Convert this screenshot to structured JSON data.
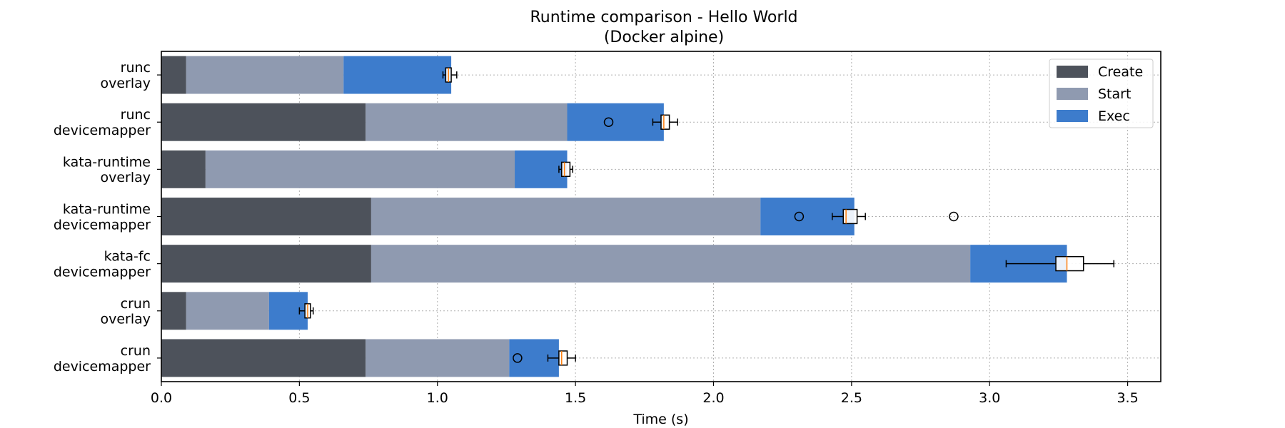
{
  "chart_data": {
    "type": "bar",
    "orientation": "horizontal",
    "stacked": true,
    "title": "Runtime comparison - Hello World",
    "subtitle": "(Docker alpine)",
    "xlabel": "Time (s)",
    "ylabel": "",
    "xlim": [
      0,
      3.62
    ],
    "xticks": [
      0.0,
      0.5,
      1.0,
      1.5,
      2.0,
      2.5,
      3.0,
      3.5
    ],
    "xtick_labels": [
      "0.0",
      "0.5",
      "1.0",
      "1.5",
      "2.0",
      "2.5",
      "3.0",
      "3.5"
    ],
    "grid": true,
    "legend_position": "top-right",
    "categories": [
      [
        "runc",
        "overlay"
      ],
      [
        "runc",
        "devicemapper"
      ],
      [
        "kata-runtime",
        "overlay"
      ],
      [
        "kata-runtime",
        "devicemapper"
      ],
      [
        "kata-fc",
        "devicemapper"
      ],
      [
        "crun",
        "overlay"
      ],
      [
        "crun",
        "devicemapper"
      ]
    ],
    "series": [
      {
        "name": "Create",
        "color": "#4d525b",
        "values": [
          0.09,
          0.74,
          0.16,
          0.76,
          0.76,
          0.09,
          0.74
        ]
      },
      {
        "name": "Start",
        "color": "#8f9ab0",
        "values": [
          0.57,
          0.73,
          1.12,
          1.41,
          2.17,
          0.3,
          0.52
        ]
      },
      {
        "name": "Exec",
        "color": "#3d7ccc",
        "values": [
          0.39,
          0.35,
          0.19,
          0.34,
          0.35,
          0.14,
          0.18
        ]
      }
    ],
    "boxplots": [
      {
        "whisker_low": 1.02,
        "q1": 1.03,
        "median": 1.04,
        "q3": 1.05,
        "whisker_high": 1.07,
        "outliers": []
      },
      {
        "whisker_low": 1.78,
        "q1": 1.81,
        "median": 1.82,
        "q3": 1.84,
        "whisker_high": 1.87,
        "outliers": [
          1.62
        ]
      },
      {
        "whisker_low": 1.44,
        "q1": 1.45,
        "median": 1.46,
        "q3": 1.48,
        "whisker_high": 1.49,
        "outliers": []
      },
      {
        "whisker_low": 2.43,
        "q1": 2.47,
        "median": 2.48,
        "q3": 2.52,
        "whisker_high": 2.55,
        "outliers": [
          2.31,
          2.87
        ]
      },
      {
        "whisker_low": 3.06,
        "q1": 3.24,
        "median": 3.28,
        "q3": 3.34,
        "whisker_high": 3.45,
        "outliers": []
      },
      {
        "whisker_low": 0.5,
        "q1": 0.52,
        "median": 0.53,
        "q3": 0.54,
        "whisker_high": 0.55,
        "outliers": []
      },
      {
        "whisker_low": 1.4,
        "q1": 1.44,
        "median": 1.45,
        "q3": 1.47,
        "whisker_high": 1.5,
        "outliers": [
          1.29
        ]
      }
    ]
  }
}
